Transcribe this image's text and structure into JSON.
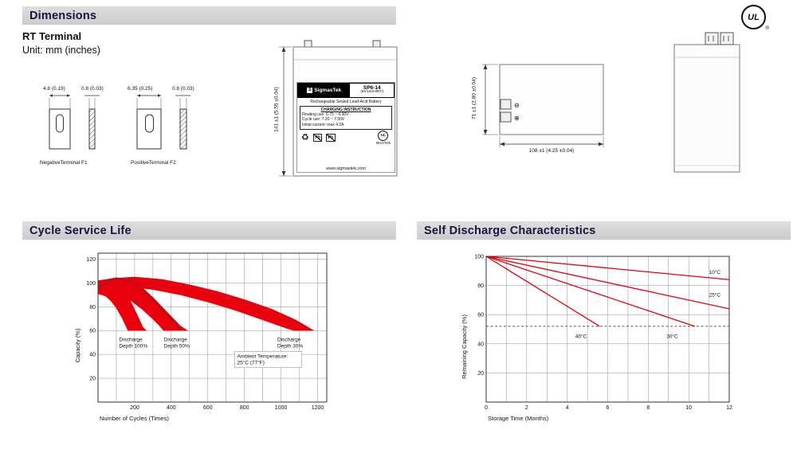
{
  "page": {
    "sections": {
      "dimensions": "Dimensions",
      "cycle_service_life": "Cycle Service Life",
      "self_discharge": "Self Discharge Characteristics"
    },
    "rt_terminal_heading": "RT Terminal",
    "unit_label": "Unit: mm (inches)",
    "ul_mark": "UL",
    "registered_symbol": "®"
  },
  "terminals": {
    "negative": {
      "width_dim": "4.8 (0.19)",
      "thickness_dim": "0.8 (0.03)",
      "label": "NegativeTerminal F1"
    },
    "positive": {
      "width_dim": "6.35 (0.25)",
      "thickness_dim": "0.8 (0.03)",
      "label": "PositiveTerminal F2"
    }
  },
  "front_view": {
    "height_dim": "141 ±1 (5.55 ±0.04)",
    "label": {
      "logo_letter": "S",
      "brand": "SigmasTek",
      "model": "SP6-14",
      "spec": "(6V14AH/RT)",
      "type_line": "Rechargeable Sealed Lead-Acid Battery",
      "charging_title": "CHARGING INSTRUCTION",
      "charging_line1": "Floating use: 6.75 ~ 6.90V",
      "charging_line2": "Cycle use: 7.20 ~ 7.50V",
      "charging_line3": "Initial current: max 4.2A",
      "recycle_symbol": "♻",
      "pb": "Pb",
      "ul_mark": "UL",
      "ul_code": "MH47929",
      "website": "www.sigmastek.com"
    }
  },
  "side_view": {
    "height_dim": "71 ±1 (2.80 ±0.04)",
    "width_dim": "108 ±1 (4.25 ±0.04)",
    "minus_symbol": "⊖",
    "plus_symbol": "⊕"
  },
  "chart_data": [
    {
      "id": "cycle-service-life",
      "type": "area",
      "title": "Cycle Service Life",
      "xlabel": "Number of Cycles (Times)",
      "ylabel": "Capacity (%)",
      "xlim": [
        0,
        1250
      ],
      "ylim": [
        0,
        125
      ],
      "xticks": [
        200,
        400,
        600,
        800,
        1000,
        1200
      ],
      "yticks": [
        20,
        40,
        60,
        80,
        100,
        120
      ],
      "xgrid_step": 100,
      "ygrid_step": 20,
      "grid": true,
      "color": "#e8000d",
      "bands": [
        {
          "name": "Discharge Depth 100%",
          "label_lines": [
            "Discharge",
            "Depth 100%"
          ],
          "label_at": [
            115,
            55
          ],
          "upper": [
            [
              0,
              97
            ],
            [
              30,
              101
            ],
            [
              60,
              102.5
            ],
            [
              90,
              101.5
            ],
            [
              120,
              98
            ],
            [
              150,
              92
            ],
            [
              180,
              84
            ],
            [
              215,
              73
            ],
            [
              245,
              63
            ],
            [
              265,
              60
            ]
          ],
          "lower": [
            [
              0,
              91
            ],
            [
              40,
              89
            ],
            [
              70,
              85
            ],
            [
              100,
              79
            ],
            [
              130,
              71
            ],
            [
              152,
              64
            ],
            [
              163,
              60
            ]
          ]
        },
        {
          "name": "Discharge Depth 50%",
          "label_lines": [
            "Discharge",
            "Depth 50%"
          ],
          "label_at": [
            360,
            55
          ],
          "upper": [
            [
              0,
              100
            ],
            [
              50,
              103
            ],
            [
              100,
              104.5
            ],
            [
              150,
              103.5
            ],
            [
              200,
              100
            ],
            [
              250,
              95
            ],
            [
              300,
              88
            ],
            [
              350,
              80
            ],
            [
              400,
              72
            ],
            [
              450,
              64
            ],
            [
              490,
              60
            ]
          ],
          "lower": [
            [
              0,
              94
            ],
            [
              60,
              93
            ],
            [
              120,
              90
            ],
            [
              180,
              85
            ],
            [
              240,
              78
            ],
            [
              290,
              71
            ],
            [
              330,
              65
            ],
            [
              358,
              60
            ]
          ]
        },
        {
          "name": "Discharge Depth 30%",
          "label_lines": [
            "Discharge",
            "Depth 30%"
          ],
          "label_at": [
            980,
            55
          ],
          "upper": [
            [
              0,
              102
            ],
            [
              100,
              104
            ],
            [
              200,
              105
            ],
            [
              350,
              103
            ],
            [
              500,
              98.5
            ],
            [
              650,
              93
            ],
            [
              800,
              86
            ],
            [
              950,
              78
            ],
            [
              1080,
              69
            ],
            [
              1180,
              60
            ]
          ],
          "lower": [
            [
              0,
              97
            ],
            [
              150,
              97
            ],
            [
              300,
              94.5
            ],
            [
              450,
              90
            ],
            [
              600,
              84
            ],
            [
              750,
              77
            ],
            [
              900,
              69
            ],
            [
              1010,
              63
            ],
            [
              1070,
              60
            ]
          ]
        }
      ],
      "trend_curve": [
        [
          0,
          95
        ],
        [
          60,
          102
        ],
        [
          120,
          104
        ],
        [
          180,
          101
        ],
        [
          240,
          95
        ],
        [
          310,
          85
        ],
        [
          380,
          73
        ],
        [
          430,
          64
        ],
        [
          455,
          60
        ]
      ],
      "annotation": {
        "lines": [
          "Ambient Temperature:",
          "25°C (77°F)"
        ],
        "at": [
          760,
          41
        ]
      }
    },
    {
      "id": "self-discharge-characteristics",
      "type": "line",
      "title": "Self Discharge Characteristics",
      "xlabel": "Storage Time (Months)",
      "ylabel": "Remaining Capacity (%)",
      "xlim": [
        0,
        12
      ],
      "ylim": [
        0,
        100
      ],
      "xticks": [
        0,
        2,
        4,
        6,
        8,
        10,
        12
      ],
      "yticks": [
        20,
        40,
        60,
        80,
        100
      ],
      "xgrid_step": 1,
      "ygrid_step": 20,
      "grid": true,
      "color": "#e8000d",
      "dashed_y": 52,
      "series": [
        {
          "name": "10°C",
          "points": [
            [
              0,
              100
            ],
            [
              12,
              84
            ]
          ],
          "label_at": [
            11,
            88
          ]
        },
        {
          "name": "25°C",
          "points": [
            [
              0,
              100
            ],
            [
              12,
              64
            ]
          ],
          "label_at": [
            11,
            72.5
          ]
        },
        {
          "name": "30°C",
          "points": [
            [
              0,
              100
            ],
            [
              10.3,
              52
            ]
          ],
          "label_at": [
            8.9,
            44
          ]
        },
        {
          "name": "40°C",
          "points": [
            [
              0,
              100
            ],
            [
              5.6,
              52
            ]
          ],
          "label_at": [
            4.4,
            44
          ]
        }
      ]
    }
  ]
}
